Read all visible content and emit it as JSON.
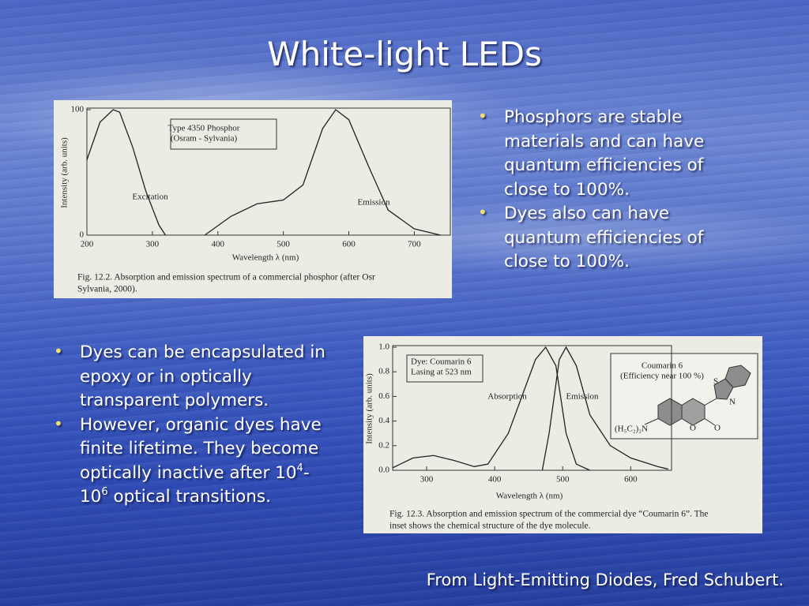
{
  "slide": {
    "title": "White-light LEDs",
    "bullets_right": [
      "Phosphors are stable materials and can have quantum efficiencies of close to 100%.",
      "Dyes also can have quantum efficiencies of close to 100%."
    ],
    "bullets_left": [
      [
        {
          "text": "Dyes can be encapsulated in epoxy or in optically transparent polymers."
        }
      ],
      [
        {
          "text": "However, organic dyes have finite lifetime. They become optically inactive after 10"
        },
        {
          "sup": "4"
        },
        {
          "text": "-10"
        },
        {
          "sup": "6"
        },
        {
          "text": " optical transitions."
        }
      ]
    ],
    "source": "From Light-Emitting Diodes, Fred Schubert."
  },
  "figures": [
    {
      "type": "line",
      "xlabel": "Wavelength λ (nm)",
      "ylabel": "Intensity (arb. units)",
      "xlim": [
        200,
        755
      ],
      "ylim": [
        0,
        100
      ],
      "xticks": [
        200,
        300,
        400,
        500,
        600,
        700
      ],
      "yticks": [
        0,
        100
      ],
      "series": [
        {
          "name": "Excitation",
          "x": [
            200,
            220,
            240,
            250,
            270,
            290,
            310,
            320
          ],
          "y": [
            60,
            90,
            100,
            98,
            70,
            35,
            8,
            0
          ]
        },
        {
          "name": "Emission",
          "x": [
            380,
            420,
            460,
            500,
            530,
            560,
            580,
            600,
            630,
            660,
            700,
            740
          ],
          "y": [
            0,
            15,
            25,
            28,
            40,
            85,
            100,
            92,
            55,
            20,
            5,
            0
          ]
        }
      ],
      "box": [
        "Type 4350 Phosphor",
        "(Osram - Sylvania)"
      ],
      "caption": [
        "Fig. 12.2. Absorption and emission spectrum of a commercial phosphor (after Osr",
        "Sylvania, 2000)."
      ]
    },
    {
      "type": "line",
      "xlabel": "Wavelength λ (nm)",
      "ylabel": "Intensity (arb. units)",
      "xlim": [
        250,
        660
      ],
      "ylim": [
        0,
        1
      ],
      "xticks": [
        300,
        400,
        500,
        600
      ],
      "yticks": [
        {
          "value": 0,
          "label": "0.0"
        },
        0.2,
        0.4,
        0.6,
        0.8,
        {
          "value": 1,
          "label": "1.0"
        }
      ],
      "series": [
        {
          "name": "Absorption",
          "x": [
            250,
            280,
            310,
            340,
            370,
            390,
            420,
            440,
            460,
            475,
            490,
            505,
            520,
            540
          ],
          "y": [
            0.02,
            0.1,
            0.12,
            0.08,
            0.03,
            0.05,
            0.3,
            0.6,
            0.9,
            1.0,
            0.85,
            0.3,
            0.05,
            0
          ]
        },
        {
          "name": "Emission",
          "x": [
            470,
            480,
            495,
            505,
            520,
            540,
            570,
            600,
            640,
            655
          ],
          "y": [
            0,
            0.3,
            0.9,
            1.0,
            0.85,
            0.45,
            0.2,
            0.1,
            0.03,
            0.01
          ]
        }
      ],
      "box": [
        "Dye:  Coumarin 6",
        "Lasing at 523 nm"
      ],
      "inset": {
        "title": "Coumarin 6",
        "note": "(Efficiency near 100 %)",
        "atoms": [
          "S",
          "N",
          "O",
          "O",
          "(H₅C₂)₂N"
        ]
      },
      "caption": [
        "Fig. 12.3. Absorption and emission spectrum of the commercial dye “Coumarin 6”. The",
        "inset shows the chemical structure of the dye molecule."
      ]
    }
  ]
}
